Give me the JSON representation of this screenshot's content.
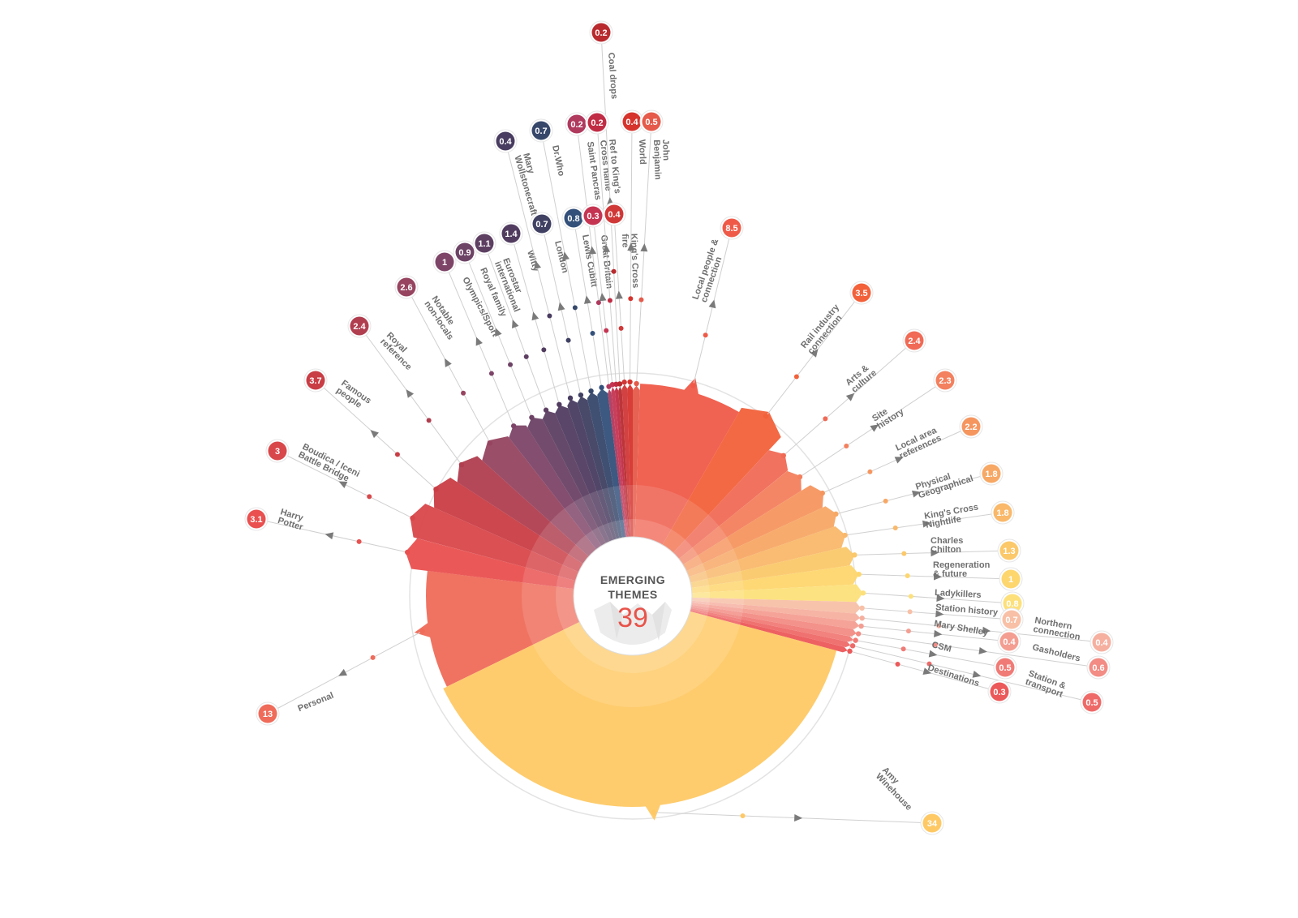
{
  "chart_data": {
    "type": "radial-bar",
    "title": "EMERGING THEMES",
    "center_value": "39",
    "series": [
      {
        "label": "Personal",
        "value": 13,
        "display": "13",
        "color": "#ef6b5a"
      },
      {
        "label": "Harry\nPotter",
        "value": 3.1,
        "display": "3.1",
        "color": "#e9504f"
      },
      {
        "label": "Boudica / Iceni\nBattle Bridge",
        "value": 3,
        "display": "3",
        "color": "#d8474a"
      },
      {
        "label": "Famous\npeople",
        "value": 3.7,
        "display": "3.7",
        "color": "#c93d45"
      },
      {
        "label": "Royal\nreference",
        "value": 2.4,
        "display": "2.4",
        "color": "#b03e4f"
      },
      {
        "label": "Notable\nnon-locals",
        "value": 2.6,
        "display": "2.6",
        "color": "#964460"
      },
      {
        "label": "Olympics/Sport",
        "value": 1,
        "display": "1",
        "color": "#7d4468"
      },
      {
        "label": "Royal family",
        "value": 0.9,
        "display": "0.9",
        "color": "#6c4265"
      },
      {
        "label": "Eurostar\ninternational",
        "value": 1.1,
        "display": "1.1",
        "color": "#5d3f62"
      },
      {
        "label": "Witty",
        "value": 1.4,
        "display": "1.4",
        "color": "#513c60"
      },
      {
        "label": "Mary\nWollstonecraft",
        "value": 0.4,
        "display": "0.4",
        "color": "#483c60"
      },
      {
        "label": "London",
        "value": 0.7,
        "display": "0.7",
        "color": "#3f4062"
      },
      {
        "label": "Dr.Who",
        "value": 0.7,
        "display": "0.7",
        "color": "#36476a"
      },
      {
        "label": "Lewis Cubitt",
        "value": 0.8,
        "display": "0.8",
        "color": "#33507a"
      },
      {
        "label": "Saint Pancras",
        "value": 0.2,
        "display": "0.2",
        "color": "#b0395e"
      },
      {
        "label": "Great Britain",
        "value": 0.3,
        "display": "0.3",
        "color": "#c53552"
      },
      {
        "label": "Ref to King's\nCross name",
        "value": 0.2,
        "display": "0.2",
        "color": "#c02c44"
      },
      {
        "label": "Coal drops",
        "value": 0.2,
        "display": "0.2",
        "color": "#b82a2e"
      },
      {
        "label": "King's Cross\nfire",
        "value": 0.4,
        "display": "0.4",
        "color": "#d03838"
      },
      {
        "label": "World",
        "value": 0.4,
        "display": "0.4",
        "color": "#d6332d"
      },
      {
        "label": "John\nBenjamin",
        "value": 0.5,
        "display": "0.5",
        "color": "#e55a4a"
      },
      {
        "label": "Local people &\nconnection",
        "value": 8.5,
        "display": "8.5",
        "color": "#ef5a48"
      },
      {
        "label": "Rail industry\nconnection",
        "value": 3.5,
        "display": "3.5",
        "color": "#f2613a"
      },
      {
        "label": "Arts &\nculture",
        "value": 2.4,
        "display": "2.4",
        "color": "#f06a56"
      },
      {
        "label": "Site\nhistory",
        "value": 2.3,
        "display": "2.3",
        "color": "#f3805e"
      },
      {
        "label": "Local area\nreferences",
        "value": 2.2,
        "display": "2.2",
        "color": "#f5965f"
      },
      {
        "label": "Physical\nGeographical",
        "value": 1.8,
        "display": "1.8",
        "color": "#f7a865"
      },
      {
        "label": "King's Cross\nNightlife",
        "value": 1.8,
        "display": "1.8",
        "color": "#f9b86a"
      },
      {
        "label": "Charles\nChilton",
        "value": 1.3,
        "display": "1.3",
        "color": "#fbc86a"
      },
      {
        "label": "Regeneration\n& future",
        "value": 1,
        "display": "1",
        "color": "#fdd66e"
      },
      {
        "label": "Ladykillers",
        "value": 0.8,
        "display": "0.8",
        "color": "#fde07a"
      },
      {
        "label": "Station history",
        "value": 0.7,
        "display": "0.7",
        "color": "#f8c0a6"
      },
      {
        "label": "Northern\nconnection",
        "value": 0.4,
        "display": "0.4",
        "color": "#f6b0a0"
      },
      {
        "label": "Mary Shelley",
        "value": 0.4,
        "display": "0.4",
        "color": "#f49e92"
      },
      {
        "label": "Gasholders",
        "value": 0.6,
        "display": "0.6",
        "color": "#f28c84"
      },
      {
        "label": "CSM",
        "value": 0.5,
        "display": "0.5",
        "color": "#f07b76"
      },
      {
        "label": "Station &\ntransport",
        "value": 0.5,
        "display": "0.5",
        "color": "#ee6a68"
      },
      {
        "label": "Destinations",
        "value": 0.3,
        "display": "0.3",
        "color": "#ec595a"
      },
      {
        "label": "Amy\nWinehouse",
        "value": 34,
        "display": "34",
        "color": "#fec965"
      }
    ]
  }
}
